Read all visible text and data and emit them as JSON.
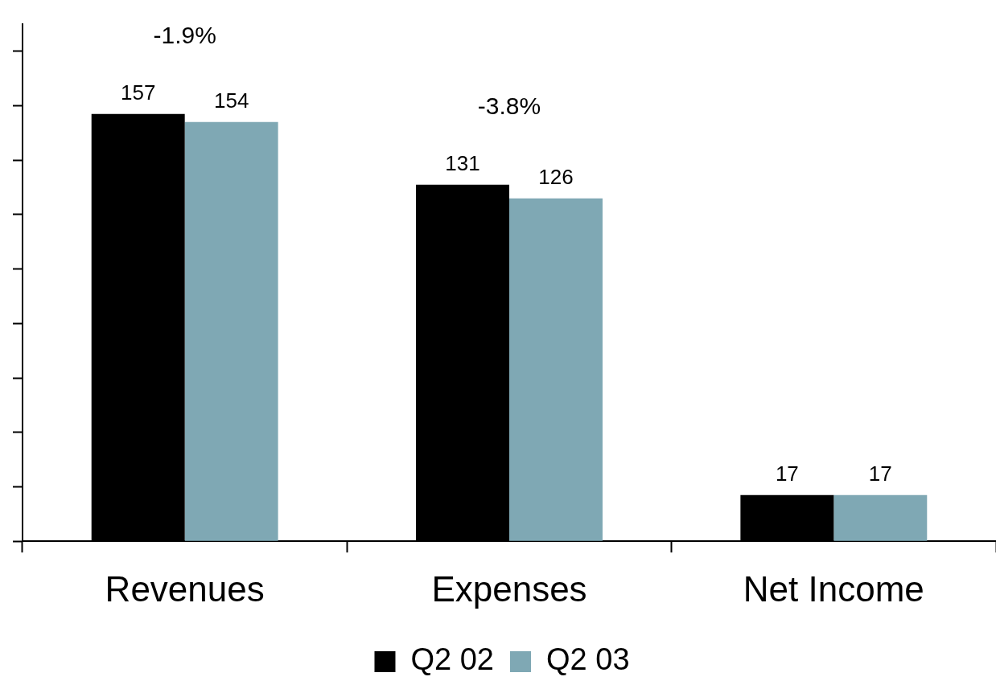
{
  "chart_data": {
    "type": "bar",
    "categories": [
      "Revenues",
      "Expenses",
      "Net Income"
    ],
    "series": [
      {
        "name": "Q2 02",
        "color": "#000000",
        "values": [
          157,
          131,
          17
        ]
      },
      {
        "name": "Q2 03",
        "color": "#7fa8b4",
        "values": [
          154,
          126,
          17
        ]
      }
    ],
    "ylim": [
      0,
      190
    ],
    "yticks": [
      {
        "value": 0,
        "label": null
      },
      {
        "value": 20,
        "label": null
      },
      {
        "value": 40,
        "label": null
      },
      {
        "value": 60,
        "label": null
      },
      {
        "value": 80,
        "label": null
      },
      {
        "value": 100,
        "label": null
      },
      {
        "value": 120,
        "label": null
      },
      {
        "value": 140,
        "label": null
      },
      {
        "value": 160,
        "label": null
      },
      {
        "value": 180,
        "label": null
      }
    ],
    "tick_labels": "x",
    "data_labels": true,
    "grid": false,
    "legend": "bottom",
    "annotations": [
      "-1.9%",
      "-3.8%"
    ]
  }
}
